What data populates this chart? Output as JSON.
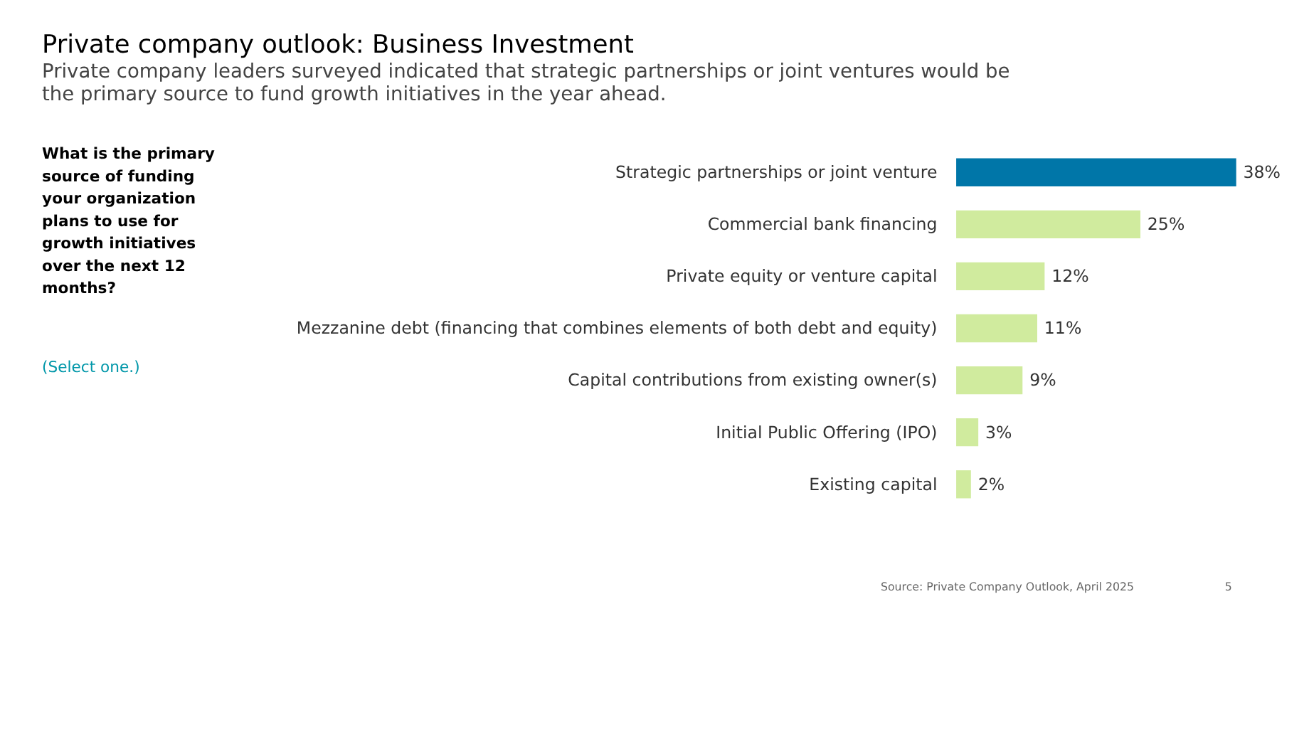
{
  "chart_data": {
    "type": "bar",
    "orientation": "horizontal",
    "title": "Private company outlook: Business Investment",
    "subtitle": "Private company leaders surveyed indicated that strategic partnerships or joint ventures would be the primary source to fund growth initiatives in the year ahead.",
    "categories": [
      "Strategic partnerships or joint venture",
      "Commercial bank financing",
      "Private equity or venture capital",
      "Mezzanine debt (financing that combines elements of both debt and equity)",
      "Capital contributions from existing owner(s)",
      "Initial Public Offering (IPO)",
      "Existing capital"
    ],
    "values": [
      38,
      25,
      12,
      11,
      9,
      3,
      2
    ],
    "colors": [
      "#0076a8",
      "#d0eb9e",
      "#d0eb9e",
      "#d0eb9e",
      "#d0eb9e",
      "#d0eb9e",
      "#d0eb9e"
    ],
    "value_labels": [
      "38%",
      "25%",
      "12%",
      "11%",
      "9%",
      "3%",
      "2%"
    ],
    "annotations": [
      "What is the primary source of funding your organization plans to use for growth initiatives over the next 12 months?",
      "(Select one.)",
      "Source: Private Company Outlook, April 2025",
      "5"
    ],
    "grid": false
  }
}
